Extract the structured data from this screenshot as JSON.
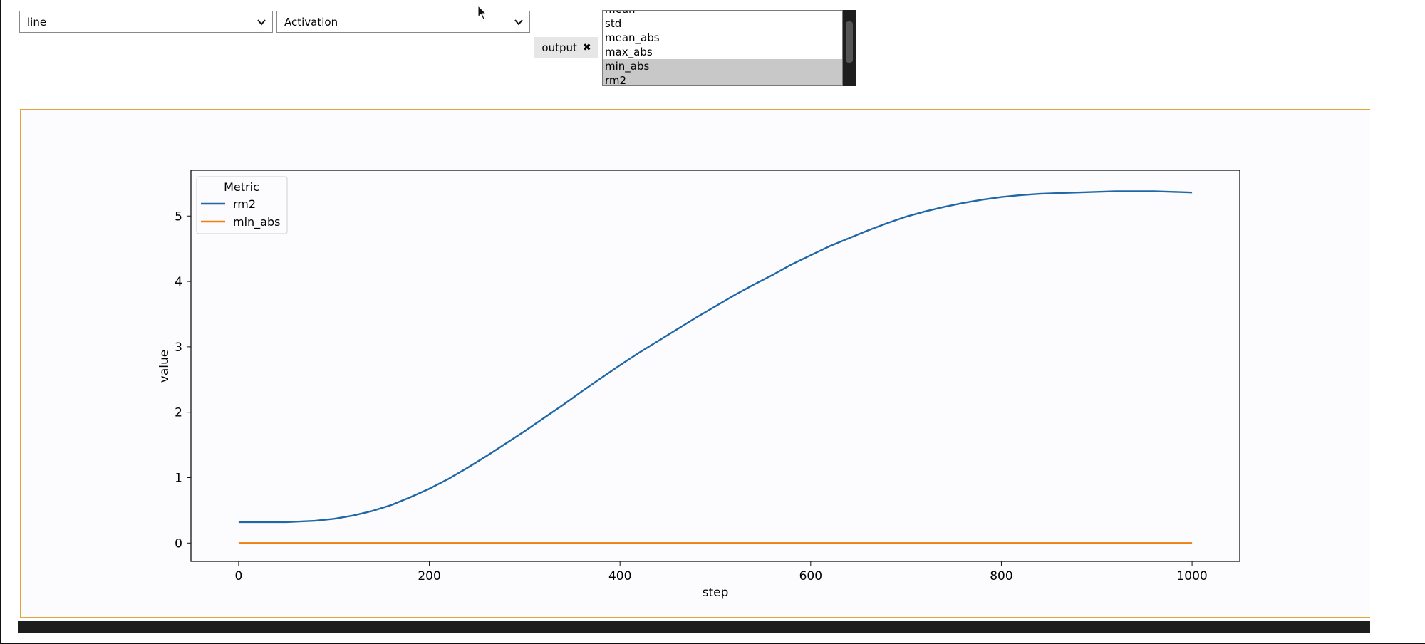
{
  "controls": {
    "chart_type_select": "line",
    "kind_select": "Activation",
    "chip_label": "output",
    "chip_close_icon": "close-icon",
    "metric_options": [
      "mean",
      "std",
      "mean_abs",
      "max_abs",
      "min_abs",
      "rm2"
    ],
    "selected_options": [
      "min_abs",
      "rm2"
    ],
    "dropdown_icon": "chevron-down-icon"
  },
  "colors": {
    "panel_border": "#e3a33a",
    "series_rm2": "#1f67a6",
    "series_min_abs": "#f07f0e"
  },
  "chart_data": {
    "type": "line",
    "xlabel": "step",
    "ylabel": "value",
    "xlim": [
      -50,
      1050
    ],
    "ylim": [
      -0.28,
      5.7
    ],
    "x_ticks": [
      0,
      200,
      400,
      600,
      800,
      1000
    ],
    "y_ticks": [
      0,
      1,
      2,
      3,
      4,
      5
    ],
    "legend": {
      "title": "Metric",
      "placement": "top-left"
    },
    "grid": false,
    "series": [
      {
        "name": "rm2",
        "x": [
          0,
          50,
          80,
          100,
          120,
          140,
          160,
          180,
          200,
          220,
          240,
          260,
          280,
          300,
          320,
          340,
          360,
          380,
          400,
          420,
          440,
          460,
          480,
          500,
          520,
          540,
          560,
          580,
          600,
          620,
          640,
          660,
          680,
          700,
          720,
          740,
          760,
          780,
          800,
          820,
          840,
          860,
          880,
          900,
          920,
          940,
          960,
          980,
          1000
        ],
        "values": [
          0.32,
          0.32,
          0.34,
          0.37,
          0.42,
          0.49,
          0.58,
          0.7,
          0.83,
          0.98,
          1.15,
          1.33,
          1.52,
          1.71,
          1.91,
          2.11,
          2.32,
          2.52,
          2.72,
          2.91,
          3.09,
          3.27,
          3.45,
          3.62,
          3.79,
          3.95,
          4.1,
          4.26,
          4.4,
          4.54,
          4.66,
          4.78,
          4.89,
          4.99,
          5.07,
          5.14,
          5.2,
          5.25,
          5.29,
          5.32,
          5.34,
          5.35,
          5.36,
          5.37,
          5.38,
          5.38,
          5.38,
          5.37,
          5.36
        ]
      },
      {
        "name": "min_abs",
        "x": [
          0,
          1000
        ],
        "values": [
          0.0,
          0.0
        ]
      }
    ]
  }
}
